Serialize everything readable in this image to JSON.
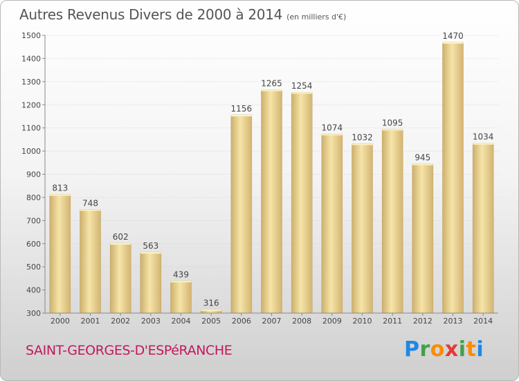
{
  "header": {
    "title": "Autres Revenus Divers de 2000 à 2014",
    "unit_note": "(en milliers d'€)"
  },
  "footer": {
    "commune": "SAINT-GEORGES-D'ESPéRANCHE",
    "brand_letters": [
      "P",
      "r",
      "o",
      "x",
      "i",
      "t",
      "i"
    ]
  },
  "colors": {
    "bar_light": "#f6e4a8",
    "bar_dark": "#cdb06c",
    "bar_edge": "#bfa060",
    "commune_text": "#c2185b"
  },
  "chart_data": {
    "type": "bar",
    "categories": [
      "2000",
      "2001",
      "2002",
      "2003",
      "2004",
      "2005",
      "2006",
      "2007",
      "2008",
      "2009",
      "2010",
      "2011",
      "2012",
      "2013",
      "2014"
    ],
    "values": [
      813,
      748,
      602,
      563,
      439,
      316,
      1156,
      1265,
      1254,
      1074,
      1032,
      1095,
      945,
      1470,
      1034
    ],
    "ylim": [
      300,
      1500
    ],
    "yticks": [
      300,
      400,
      500,
      600,
      700,
      800,
      900,
      1000,
      1100,
      1200,
      1300,
      1400,
      1500
    ],
    "grid": true
  }
}
